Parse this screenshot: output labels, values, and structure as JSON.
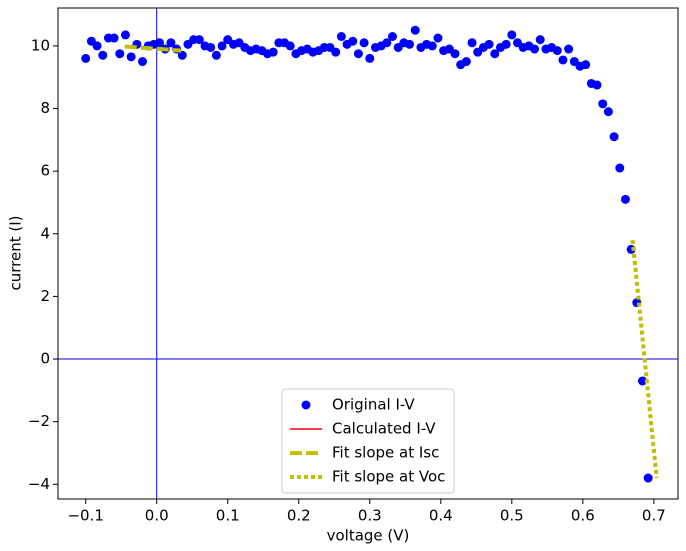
{
  "chart_data": {
    "type": "scatter",
    "xlabel": "voltage (V)",
    "ylabel": "current (I)",
    "xlim": [
      -0.139,
      0.734
    ],
    "ylim": [
      -4.47,
      11.21
    ],
    "xticks": [
      {
        "value": -0.1,
        "label": "−0.1"
      },
      {
        "value": 0,
        "label": "0.0"
      },
      0.1,
      0.2,
      0.3,
      0.4,
      0.5,
      0.6,
      0.7
    ],
    "yticks": [
      {
        "value": -4,
        "label": "−4"
      },
      {
        "value": -2,
        "label": "−2"
      },
      0,
      2,
      4,
      6,
      8,
      10
    ],
    "vlines": [
      0
    ],
    "hlines": [
      0
    ],
    "ref_color": "#0000ff",
    "legend": "lower center",
    "series": [
      {
        "name": "Original I-V",
        "color": "#0000ff",
        "style": "marker",
        "x": [
          -0.1,
          -0.092,
          -0.084,
          -0.076,
          -0.068,
          -0.06,
          -0.052,
          -0.044,
          -0.036,
          -0.028,
          -0.02,
          -0.012,
          -0.004,
          0.004,
          0.012,
          0.02,
          0.028,
          0.036,
          0.044,
          0.052,
          0.06,
          0.068,
          0.076,
          0.084,
          0.092,
          0.1,
          0.108,
          0.116,
          0.124,
          0.132,
          0.14,
          0.148,
          0.156,
          0.164,
          0.172,
          0.18,
          0.188,
          0.196,
          0.204,
          0.212,
          0.22,
          0.228,
          0.236,
          0.244,
          0.252,
          0.26,
          0.268,
          0.276,
          0.284,
          0.292,
          0.3,
          0.308,
          0.316,
          0.324,
          0.332,
          0.34,
          0.348,
          0.356,
          0.364,
          0.372,
          0.38,
          0.388,
          0.396,
          0.404,
          0.412,
          0.42,
          0.428,
          0.436,
          0.444,
          0.452,
          0.46,
          0.468,
          0.476,
          0.484,
          0.492,
          0.5,
          0.508,
          0.516,
          0.524,
          0.532,
          0.54,
          0.548,
          0.556,
          0.564,
          0.572,
          0.58,
          0.588,
          0.596,
          0.604,
          0.612,
          0.62,
          0.628,
          0.636,
          0.644,
          0.652,
          0.66,
          0.668,
          0.676,
          0.684,
          0.692
        ],
        "values": [
          9.6,
          10.15,
          10.0,
          9.7,
          10.25,
          10.25,
          9.75,
          10.35,
          9.65,
          10.05,
          9.5,
          10.0,
          10.05,
          10.1,
          9.9,
          10.1,
          9.9,
          9.7,
          10.05,
          10.2,
          10.2,
          10.0,
          9.95,
          9.7,
          10.0,
          10.2,
          10.05,
          10.1,
          9.95,
          9.85,
          9.9,
          9.85,
          9.75,
          9.8,
          10.1,
          10.1,
          10.0,
          9.75,
          9.85,
          9.9,
          9.8,
          9.85,
          9.95,
          9.95,
          9.8,
          10.3,
          10.05,
          10.15,
          9.75,
          10.1,
          9.6,
          9.95,
          10.0,
          10.1,
          10.3,
          9.95,
          10.1,
          10.05,
          10.5,
          9.95,
          10.05,
          10.0,
          10.25,
          9.85,
          9.9,
          9.75,
          9.4,
          9.5,
          10.1,
          9.8,
          9.95,
          10.05,
          9.75,
          9.95,
          10.05,
          10.35,
          10.1,
          9.95,
          10.0,
          9.9,
          10.2,
          9.9,
          9.95,
          9.85,
          9.55,
          9.9,
          9.5,
          9.35,
          9.4,
          8.8,
          8.75,
          8.15,
          7.9,
          7.1,
          6.1,
          5.1,
          3.5,
          1.8,
          -0.7,
          -3.8
        ]
      },
      {
        "name": "Calculated I-V",
        "color": "#ff0000",
        "style": "solid",
        "x": [],
        "values": []
      },
      {
        "name": "Fit slope at Isc",
        "color": "#bfbf00",
        "style": "dashed",
        "x": [
          -0.045,
          0.035
        ],
        "values": [
          9.98,
          9.85
        ]
      },
      {
        "name": "Fit slope at Voc",
        "color": "#bfbf00",
        "style": "dotted",
        "x": [
          0.67,
          0.704
        ],
        "values": [
          3.8,
          -3.8
        ]
      }
    ]
  }
}
